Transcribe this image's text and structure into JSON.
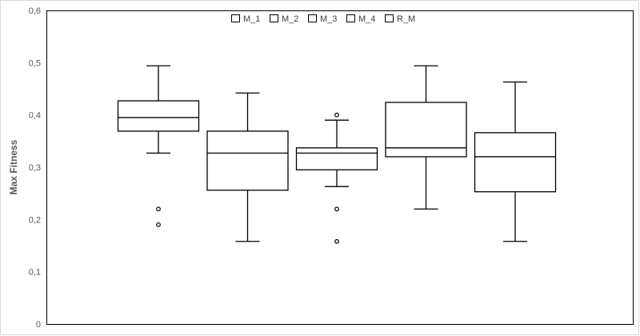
{
  "chart_data": {
    "type": "box",
    "title": "",
    "xlabel": "",
    "ylabel": "Max Fitness",
    "ylim": [
      0,
      0.6
    ],
    "yticks": [
      {
        "value": 0,
        "label": "0"
      },
      {
        "value": 0.1,
        "label": "0,1"
      },
      {
        "value": 0.2,
        "label": "0,2"
      },
      {
        "value": 0.3,
        "label": "0,3"
      },
      {
        "value": 0.4,
        "label": "0,4"
      },
      {
        "value": 0.5,
        "label": "0,5"
      },
      {
        "value": 0.6,
        "label": "0,6"
      }
    ],
    "grid": false,
    "legend_position": "top-center",
    "box_fill": "#ffffff",
    "line_color": "#000000",
    "series": [
      {
        "name": "M_1",
        "whisker_low": 0.327,
        "q1": 0.369,
        "median": 0.395,
        "q3": 0.427,
        "whisker_high": 0.494,
        "outliers": [
          0.22,
          0.19
        ]
      },
      {
        "name": "M_2",
        "whisker_low": 0.158,
        "q1": 0.256,
        "median": 0.327,
        "q3": 0.369,
        "whisker_high": 0.442,
        "outliers": []
      },
      {
        "name": "M_3",
        "whisker_low": 0.263,
        "q1": 0.295,
        "median": 0.327,
        "q3": 0.337,
        "whisker_high": 0.39,
        "outliers": [
          0.4,
          0.22,
          0.158
        ]
      },
      {
        "name": "M_4",
        "whisker_low": 0.22,
        "q1": 0.32,
        "median": 0.337,
        "q3": 0.424,
        "whisker_high": 0.494,
        "outliers": []
      },
      {
        "name": "R_M",
        "whisker_low": 0.158,
        "q1": 0.253,
        "median": 0.32,
        "q3": 0.366,
        "whisker_high": 0.463,
        "outliers": []
      }
    ]
  }
}
